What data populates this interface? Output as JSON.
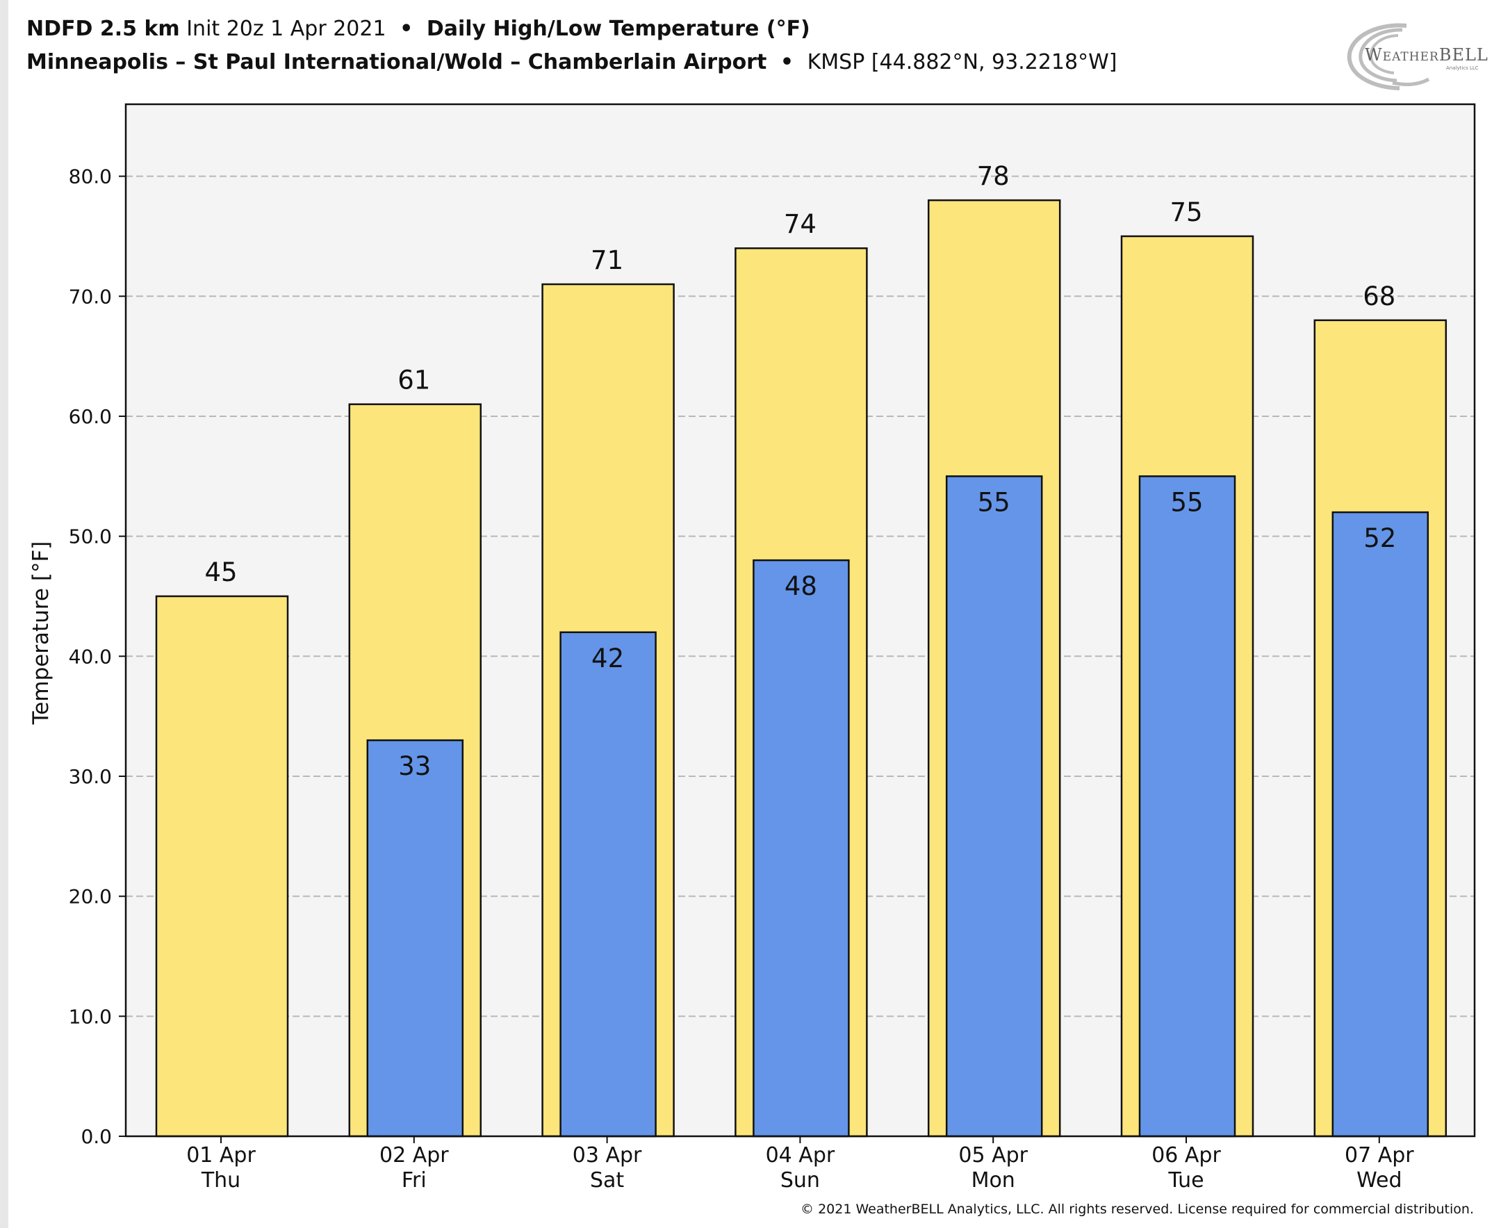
{
  "header": {
    "line1": {
      "model": "NDFD 2.5 km",
      "init": "Init 20z 1 Apr 2021",
      "bullet": "•",
      "product": "Daily High/Low Temperature (°F)"
    },
    "line2": {
      "station_name": "Minneapolis – St Paul International/Wold – Chamberlain Airport",
      "bullet": "•",
      "station_info": "KMSP [44.882°N, 93.2218°W]"
    }
  },
  "logo": {
    "text_a": "W",
    "text_b": "EATHER",
    "text_c": "BELL",
    "subtext": "Analytics LLC"
  },
  "footer": {
    "copyright": "© 2021 WeatherBELL Analytics, LLC. All rights reserved. License required for commercial distribution."
  },
  "chart_data": {
    "type": "bar",
    "title": "",
    "xlabel": "",
    "ylabel": "Temperature [°F]",
    "ylim": [
      0,
      86
    ],
    "y_ticks": [
      "0.0",
      "10.0",
      "20.0",
      "30.0",
      "40.0",
      "50.0",
      "60.0",
      "70.0",
      "80.0"
    ],
    "grid": "horizontal-dashed",
    "categories": [
      [
        "01 Apr",
        "Thu"
      ],
      [
        "02 Apr",
        "Fri"
      ],
      [
        "03 Apr",
        "Sat"
      ],
      [
        "04 Apr",
        "Sun"
      ],
      [
        "05 Apr",
        "Mon"
      ],
      [
        "06 Apr",
        "Tue"
      ],
      [
        "07 Apr",
        "Wed"
      ]
    ],
    "series": [
      {
        "role": "high",
        "color": "#fce57a",
        "values": [
          45,
          61,
          71,
          74,
          78,
          75,
          68
        ]
      },
      {
        "role": "low",
        "color": "#6495e8",
        "values": [
          null,
          33,
          42,
          48,
          55,
          55,
          52
        ]
      }
    ],
    "plot_background": "#f4f4f4"
  }
}
